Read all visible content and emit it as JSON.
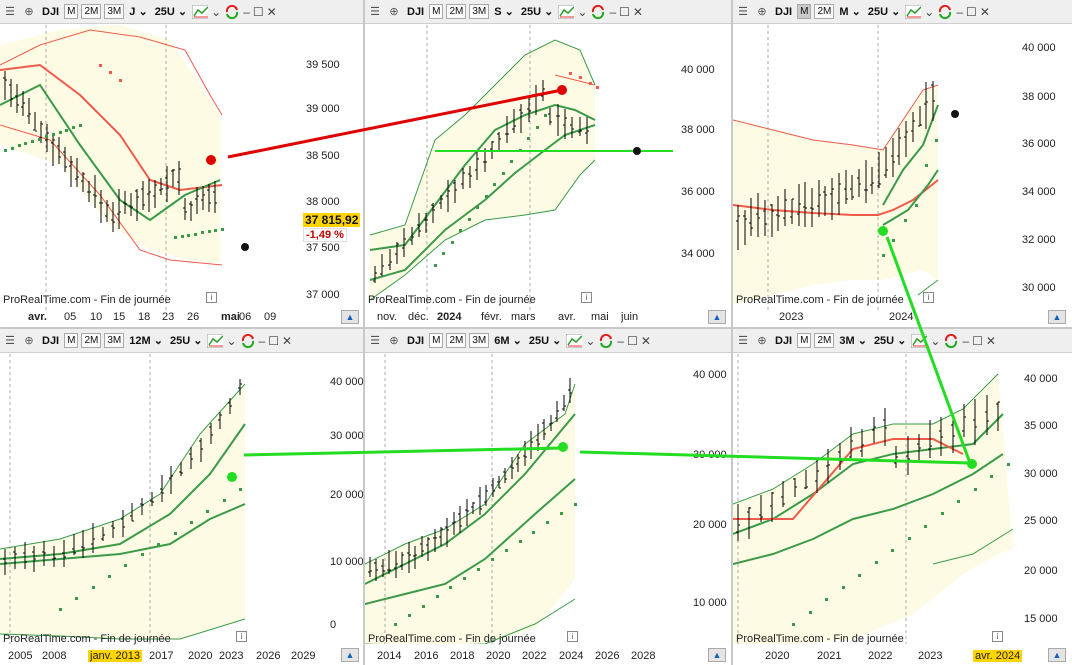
{
  "panels": [
    {
      "symbol": "DJI",
      "timeframes": [
        "M",
        "2M",
        "3M"
      ],
      "active_tf": "",
      "period": "J",
      "ma": "25U",
      "watermark": "ProRealTime.com - Fin de journée",
      "y_labels": [
        "39 500",
        "39 000",
        "38 500",
        "38 000",
        "37 500",
        "37 000"
      ],
      "x_labels": [
        "avr.",
        "05",
        "10",
        "15",
        "18",
        "23",
        "26",
        "mai",
        "06",
        "09"
      ],
      "price_badge": "37 815,92",
      "change_badge": "-1,49 %"
    },
    {
      "symbol": "DJI",
      "timeframes": [
        "M",
        "2M",
        "3M"
      ],
      "active_tf": "",
      "period": "S",
      "ma": "25U",
      "watermark": "ProRealTime.com - Fin de journée",
      "y_labels": [
        "40 000",
        "38 000",
        "36 000",
        "34 000"
      ],
      "x_labels": [
        "nov.",
        "déc.",
        "2024",
        "févr.",
        "mars",
        "avr.",
        "mai",
        "juin"
      ]
    },
    {
      "symbol": "DJI",
      "timeframes": [
        "M",
        "2M"
      ],
      "active_tf": "M",
      "period": "M",
      "ma": "25U",
      "watermark": "ProRealTime.com - Fin de journée",
      "y_labels": [
        "40 000",
        "38 000",
        "36 000",
        "34 000",
        "32 000",
        "30 000"
      ],
      "x_labels": [
        "2023",
        "2024"
      ]
    },
    {
      "symbol": "DJI",
      "timeframes": [
        "M",
        "2M",
        "3M"
      ],
      "active_tf": "",
      "period": "12M",
      "ma": "25U",
      "watermark": "ProRealTime.com - Fin de journée",
      "y_labels": [
        "40 000",
        "30 000",
        "20 000",
        "10 000",
        "0"
      ],
      "x_labels": [
        "2005",
        "2008",
        "janv. 2013",
        "2017",
        "2020",
        "2023",
        "2026",
        "2029"
      ]
    },
    {
      "symbol": "DJI",
      "timeframes": [
        "M",
        "2M",
        "3M"
      ],
      "active_tf": "",
      "period": "6M",
      "ma": "25U",
      "watermark": "ProRealTime.com - Fin de journée",
      "y_labels": [
        "40 000",
        "30 000",
        "20 000",
        "10 000"
      ],
      "x_labels": [
        "2014",
        "2016",
        "2018",
        "2020",
        "2022",
        "2024",
        "2026",
        "2028"
      ]
    },
    {
      "symbol": "DJI",
      "timeframes": [
        "M",
        "2M"
      ],
      "active_tf": "",
      "period": "3M",
      "ma": "25U",
      "watermark": "ProRealTime.com - Fin de journée",
      "y_labels": [
        "40 000",
        "35 000",
        "30 000",
        "25 000",
        "20 000",
        "15 000"
      ],
      "x_labels": [
        "2020",
        "2021",
        "2022",
        "2023",
        "avr. 2024"
      ]
    }
  ],
  "colors": {
    "band_fill": "#fdfbe3",
    "ma_green": "#3a9a4a",
    "ma_red": "#f05a4a",
    "link_red": "#e00000",
    "link_green": "#22dd22",
    "sar": "#3a9a4a"
  },
  "icons": [
    "menu-icon",
    "crosshair-icon",
    "indicators-icon",
    "settings-icon",
    "refresh-icon",
    "restore-icon",
    "close-icon",
    "scroll-up-icon",
    "info-icon"
  ]
}
